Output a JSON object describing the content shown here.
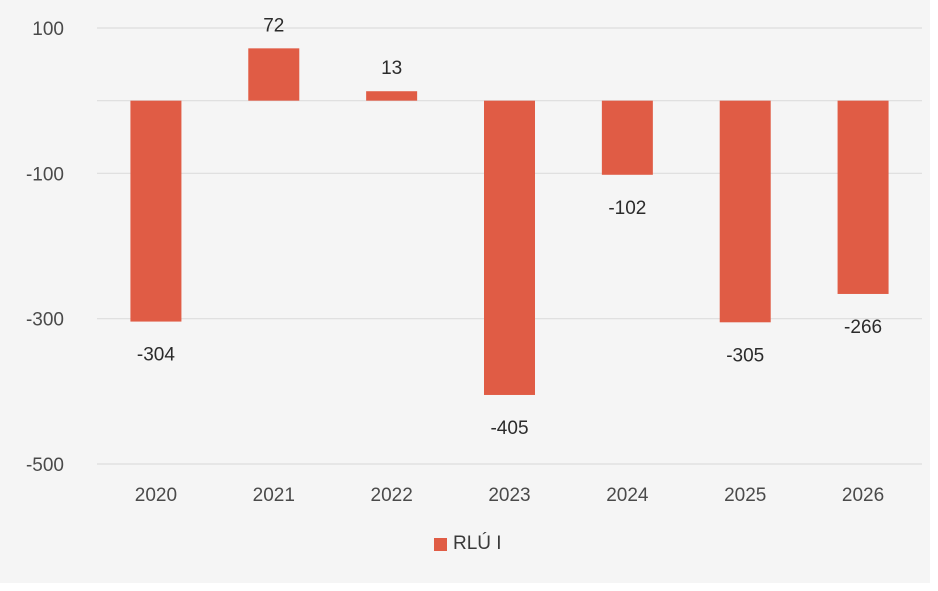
{
  "chart_data": {
    "type": "bar",
    "categories": [
      "2020",
      "2021",
      "2022",
      "2023",
      "2024",
      "2025",
      "2026"
    ],
    "series": [
      {
        "name": "RLÚ I",
        "values": [
          -304,
          72,
          13,
          -405,
          -102,
          -305,
          -266
        ],
        "color": "#e05c45"
      }
    ],
    "y_ticks": [
      "100",
      "-100",
      "-300",
      "-500"
    ],
    "ylim": [
      -500,
      100
    ],
    "grid": true,
    "legend_position": "bottom"
  }
}
